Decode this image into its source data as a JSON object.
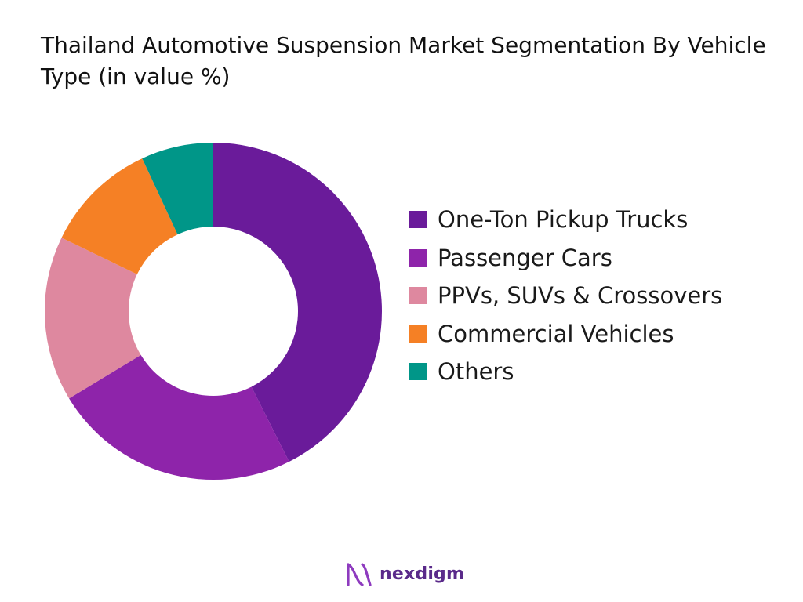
{
  "title": "Thailand Automotive Suspension Market Segmentation By Vehicle Type (in value %)",
  "brand": {
    "name": "nexdigm",
    "logo_icon": "nexdigm-logo-icon"
  },
  "chart_data": {
    "type": "pie",
    "donut": true,
    "title": "Thailand Automotive Suspension Market Segmentation By Vehicle Type (in value %)",
    "categories": [
      "One-Ton Pickup Trucks",
      "Passenger Cars",
      "PPVs, SUVs & Crossovers",
      "Commercial Vehicles",
      "Others"
    ],
    "values": [
      43,
      24,
      16,
      11,
      7
    ],
    "colors": [
      "#6a1b9a",
      "#8e24aa",
      "#de889f",
      "#f58025",
      "#009688"
    ],
    "legend_position": "right"
  }
}
